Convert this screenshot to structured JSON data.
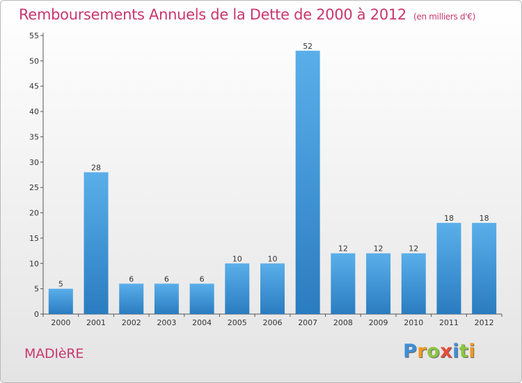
{
  "title": "Remboursements Annuels de la Dette de 2000 à 2012",
  "unit": "(en milliers d'€)",
  "commune": "MADIèRE",
  "logo": {
    "letters": [
      "P",
      "r",
      "o",
      "x",
      "i",
      "t",
      "i"
    ],
    "colors": [
      "#3e8fd8",
      "#f09a1e",
      "#8cc43f",
      "#e84b3a",
      "#3e8fd8",
      "#8cc43f",
      "#f09a1e"
    ]
  },
  "colors": {
    "bar_top": "#5aafea",
    "bar_bottom": "#2a7cc0",
    "title": "#c8376d"
  },
  "chart_data": {
    "type": "bar",
    "categories": [
      "2000",
      "2001",
      "2002",
      "2003",
      "2004",
      "2005",
      "2006",
      "2007",
      "2008",
      "2009",
      "2010",
      "2011",
      "2012"
    ],
    "values": [
      5,
      28,
      6,
      6,
      6,
      10,
      10,
      52,
      12,
      12,
      12,
      18,
      18
    ],
    "yticks": [
      0,
      5,
      10,
      15,
      20,
      25,
      30,
      35,
      40,
      45,
      50,
      55
    ],
    "ylim": [
      0,
      55
    ],
    "grid": false,
    "legend": "none"
  }
}
